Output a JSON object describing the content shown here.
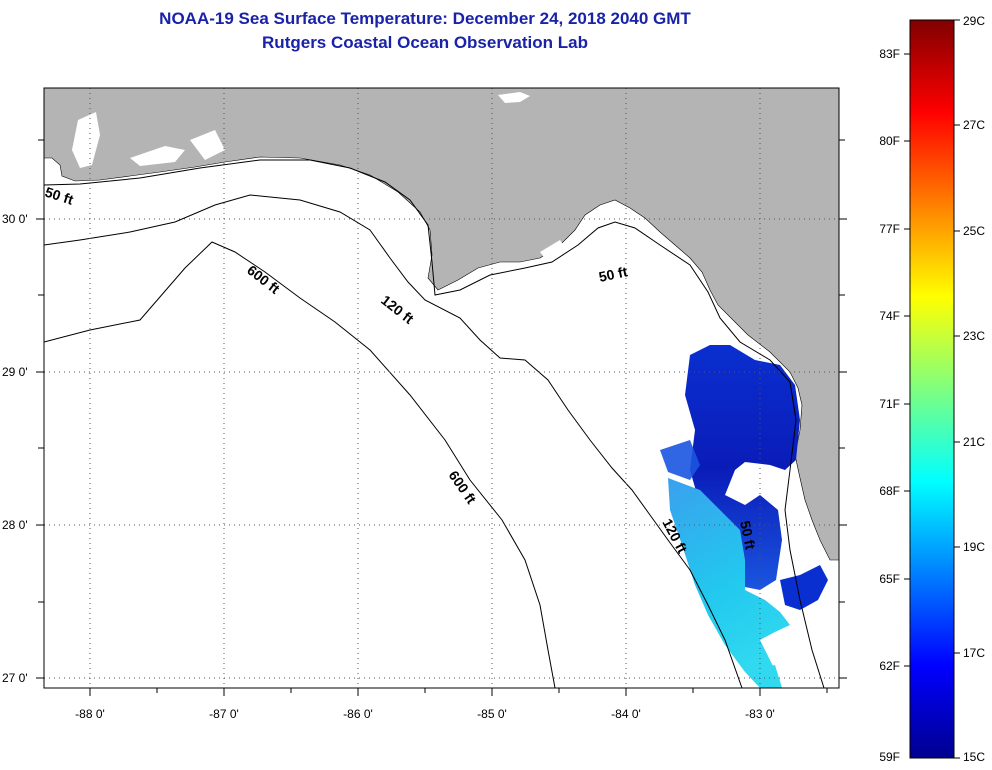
{
  "title": {
    "line1": "NOAA-19 Sea Surface Temperature:  December 24, 2018 2040 GMT",
    "line2": "Rutgers Coastal Ocean Observation Lab"
  },
  "map": {
    "lat_labels": [
      "30 0'",
      "29 0'",
      "28 0'",
      "27 0'"
    ],
    "lon_labels": [
      "-88 0'",
      "-87 0'",
      "-86 0'",
      "-85 0'",
      "-84 0'",
      "-83 0'"
    ],
    "contour_labels": {
      "west_50": "50 ft",
      "east_50": "50 ft",
      "shelf_50": "50 ft",
      "north_120": "120 ft",
      "south_120": "120 ft",
      "north_600": "600 ft",
      "south_600": "600 ft"
    },
    "colors": {
      "land": "#b4b4b4",
      "water": "#ffffff",
      "contour": "#000000"
    }
  },
  "colorbar": {
    "fahrenheit_labels": [
      "83F",
      "80F",
      "77F",
      "74F",
      "71F",
      "68F",
      "65F",
      "62F",
      "59F"
    ],
    "celsius_labels": [
      "29C",
      "27C",
      "25C",
      "23C",
      "21C",
      "19C",
      "17C",
      "15C"
    ],
    "range_c": [
      15,
      29
    ],
    "colormap": "jet"
  }
}
